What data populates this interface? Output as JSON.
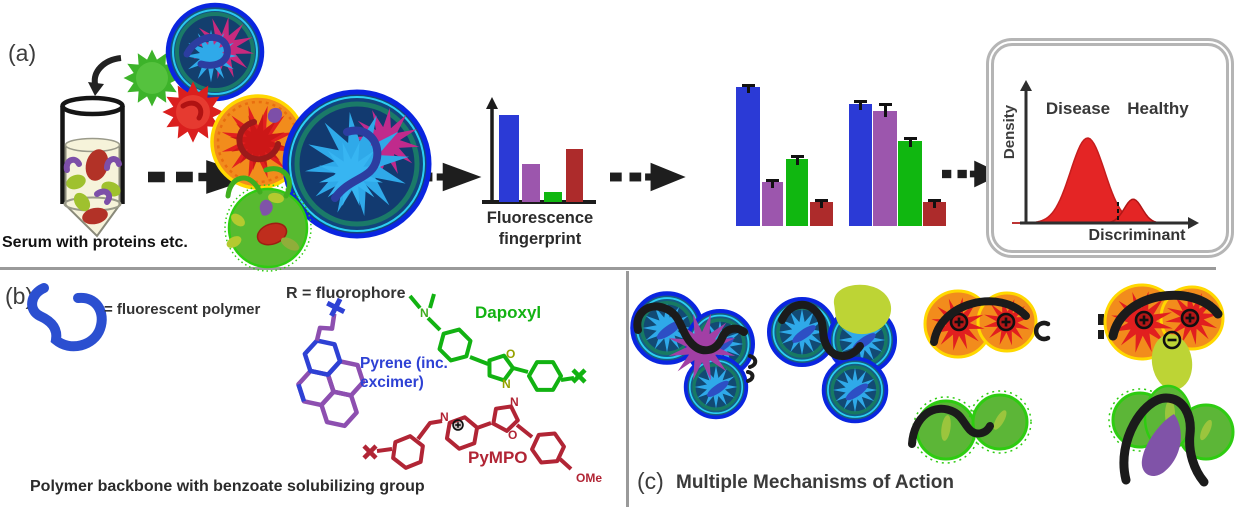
{
  "figure": {
    "panels": {
      "a": {
        "label": "(a)",
        "serum_caption": "Serum with proteins etc.",
        "fingerprint_caption_line1": "Fluorescence",
        "fingerprint_caption_line2": "fingerprint"
      },
      "b": {
        "label": "(b)",
        "polymer_legend": "= fluorescent polymer",
        "r_legend": "R = fluorophore",
        "dapoxyl_label": "Dapoxyl",
        "pyrene_label_line1": "Pyrene (inc.",
        "pyrene_label_line2": "excimer)",
        "pympo_label": "PyMPO",
        "backbone_caption": "Polymer backbone with benzoate solubilizing group",
        "atoms": {
          "dapoxyl_amine_n": "N",
          "dapoxyl_oxazole_o": "O",
          "dapoxyl_oxazole_n": "N",
          "pympo_pyridinium_n": "N",
          "pympo_oxazole_n": "N",
          "pympo_oxazole_o": "O",
          "pympo_ome": "OMe"
        }
      },
      "c": {
        "label": "(c)",
        "title": "Multiple Mechanisms of Action"
      }
    },
    "density_plot": {
      "ylabel": "Density",
      "xlabel": "Discriminant",
      "class_labels": [
        "Disease",
        "Healthy"
      ]
    }
  },
  "chart_data": [
    {
      "id": "fluorescence-fingerprint",
      "type": "bar",
      "title": "Fluorescence fingerprint",
      "categories": [
        "blue-channel",
        "purple-channel",
        "green-channel",
        "red-channel"
      ],
      "values": [
        1.0,
        0.44,
        0.11,
        0.61
      ],
      "colors": [
        "#2b3ad6",
        "#9c56ad",
        "#10b710",
        "#ad2b2b"
      ],
      "ylabel": "",
      "xlabel": "",
      "axes": {
        "y_arrow": true,
        "x_baseline": true,
        "ticks": false
      },
      "note": "schematic response pattern, arbitrary units"
    },
    {
      "id": "sample-pattern-1",
      "type": "bar",
      "categories": [
        "blue-channel",
        "purple-channel",
        "green-channel",
        "red-channel"
      ],
      "values": [
        1.0,
        0.32,
        0.48,
        0.17
      ],
      "errors": [
        0.02,
        0.02,
        0.03,
        0.02
      ],
      "colors": [
        "#2b3ad6",
        "#9c56ad",
        "#10b710",
        "#ad2b2b"
      ],
      "note": "fingerprint of sample 1 with error bars, no axes drawn"
    },
    {
      "id": "sample-pattern-2",
      "type": "bar",
      "categories": [
        "blue-channel",
        "purple-channel",
        "green-channel",
        "red-channel"
      ],
      "values": [
        0.88,
        0.83,
        0.61,
        0.17
      ],
      "errors": [
        0.03,
        0.06,
        0.03,
        0.02
      ],
      "colors": [
        "#2b3ad6",
        "#9c56ad",
        "#10b710",
        "#ad2b2b"
      ],
      "note": "fingerprint of sample 2 with error bars, no axes drawn"
    },
    {
      "id": "discriminant-density",
      "type": "area",
      "title": "",
      "xlabel": "Discriminant",
      "ylabel": "Density",
      "legend": [
        "Disease",
        "Healthy"
      ],
      "curves": [
        {
          "name": "Disease",
          "center": 0.44,
          "sigma": 0.09,
          "peak": 1.0
        },
        {
          "name": "Healthy",
          "center": 0.68,
          "sigma": 0.047,
          "peak": 0.28
        }
      ],
      "fill_color": "#e42525",
      "boundary_line_x": 0.6,
      "axis_ranges": "unlabeled schematic axes with arrowheads"
    }
  ],
  "palette": {
    "bar_blue": "#2b3ad6",
    "bar_purple": "#9c56ad",
    "bar_green": "#10b710",
    "bar_red": "#ad2b2b",
    "polymer_blue": "#2b4fd0",
    "dapoxyl_green": "#12b212",
    "pyrene_purple": "#8d4fb0",
    "pyrene_text_blue": "#2e41d4",
    "pympo_red": "#b12535",
    "density_red": "#e42525",
    "micelle_ring_blue": "#0a25e0",
    "complex_orange": "#f28c1c",
    "complex_green": "#58ba30",
    "divider_gray": "#9a9a9a",
    "box_border_gray": "#b5b5b5"
  }
}
